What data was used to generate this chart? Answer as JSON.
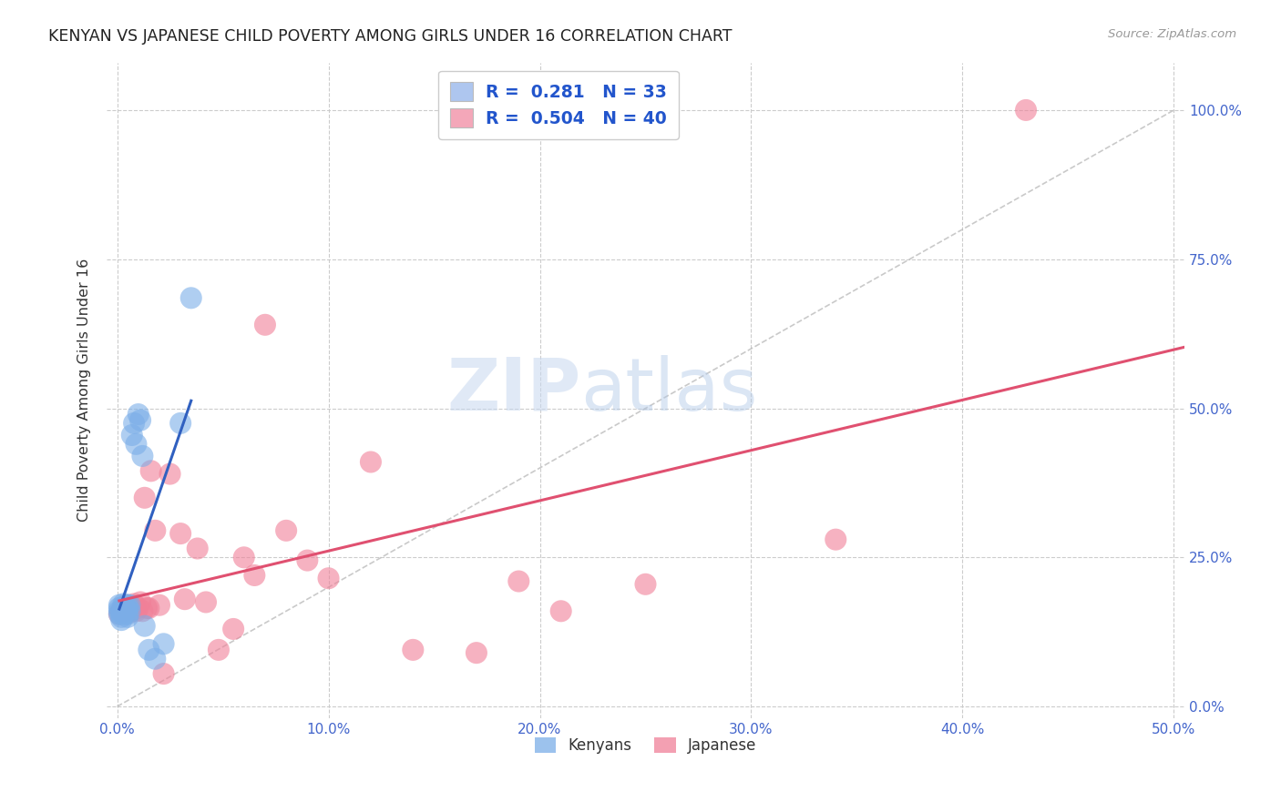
{
  "title": "KENYAN VS JAPANESE CHILD POVERTY AMONG GIRLS UNDER 16 CORRELATION CHART",
  "source": "Source: ZipAtlas.com",
  "ylabel": "Child Poverty Among Girls Under 16",
  "xlim": [
    -0.005,
    0.505
  ],
  "ylim": [
    -0.02,
    1.08
  ],
  "xtick_labels": [
    "0.0%",
    "10.0%",
    "20.0%",
    "30.0%",
    "40.0%",
    "50.0%"
  ],
  "xtick_vals": [
    0.0,
    0.1,
    0.2,
    0.3,
    0.4,
    0.5
  ],
  "ytick_labels": [
    "0.0%",
    "25.0%",
    "50.0%",
    "75.0%",
    "100.0%"
  ],
  "ytick_vals": [
    0.0,
    0.25,
    0.5,
    0.75,
    1.0
  ],
  "legend_entries": [
    {
      "label": "R =  0.281   N = 33",
      "color": "#aec6ef"
    },
    {
      "label": "R =  0.504   N = 40",
      "color": "#f4a7b9"
    }
  ],
  "legend_bottom_labels": [
    "Kenyans",
    "Japanese"
  ],
  "kenyan_color": "#7baee8",
  "japanese_color": "#f08098",
  "kenyan_trend_color": "#3060c0",
  "japanese_trend_color": "#e05070",
  "diagonal_color": "#b8b8b8",
  "watermark_zip": "ZIP",
  "watermark_atlas": "atlas",
  "background_color": "#ffffff",
  "grid_color": "#cccccc",
  "kenyan_x": [
    0.001,
    0.001,
    0.001,
    0.001,
    0.002,
    0.002,
    0.002,
    0.002,
    0.003,
    0.003,
    0.003,
    0.003,
    0.004,
    0.004,
    0.004,
    0.005,
    0.005,
    0.005,
    0.005,
    0.006,
    0.006,
    0.007,
    0.008,
    0.009,
    0.01,
    0.011,
    0.012,
    0.013,
    0.015,
    0.018,
    0.022,
    0.03,
    0.035
  ],
  "kenyan_y": [
    0.155,
    0.16,
    0.165,
    0.17,
    0.145,
    0.155,
    0.16,
    0.15,
    0.158,
    0.162,
    0.168,
    0.172,
    0.155,
    0.16,
    0.165,
    0.15,
    0.155,
    0.165,
    0.17,
    0.16,
    0.17,
    0.455,
    0.475,
    0.44,
    0.49,
    0.48,
    0.42,
    0.135,
    0.095,
    0.08,
    0.105,
    0.475,
    0.685
  ],
  "japanese_x": [
    0.001,
    0.002,
    0.003,
    0.004,
    0.005,
    0.006,
    0.007,
    0.008,
    0.009,
    0.01,
    0.011,
    0.012,
    0.013,
    0.014,
    0.015,
    0.016,
    0.018,
    0.02,
    0.022,
    0.025,
    0.03,
    0.032,
    0.038,
    0.042,
    0.048,
    0.055,
    0.06,
    0.065,
    0.07,
    0.08,
    0.09,
    0.1,
    0.12,
    0.14,
    0.17,
    0.19,
    0.21,
    0.25,
    0.34,
    0.43
  ],
  "japanese_y": [
    0.155,
    0.16,
    0.165,
    0.162,
    0.17,
    0.158,
    0.168,
    0.172,
    0.16,
    0.165,
    0.175,
    0.16,
    0.35,
    0.165,
    0.165,
    0.395,
    0.295,
    0.17,
    0.055,
    0.39,
    0.29,
    0.18,
    0.265,
    0.175,
    0.095,
    0.13,
    0.25,
    0.22,
    0.64,
    0.295,
    0.245,
    0.215,
    0.41,
    0.095,
    0.09,
    0.21,
    0.16,
    0.205,
    0.28,
    1.0
  ]
}
